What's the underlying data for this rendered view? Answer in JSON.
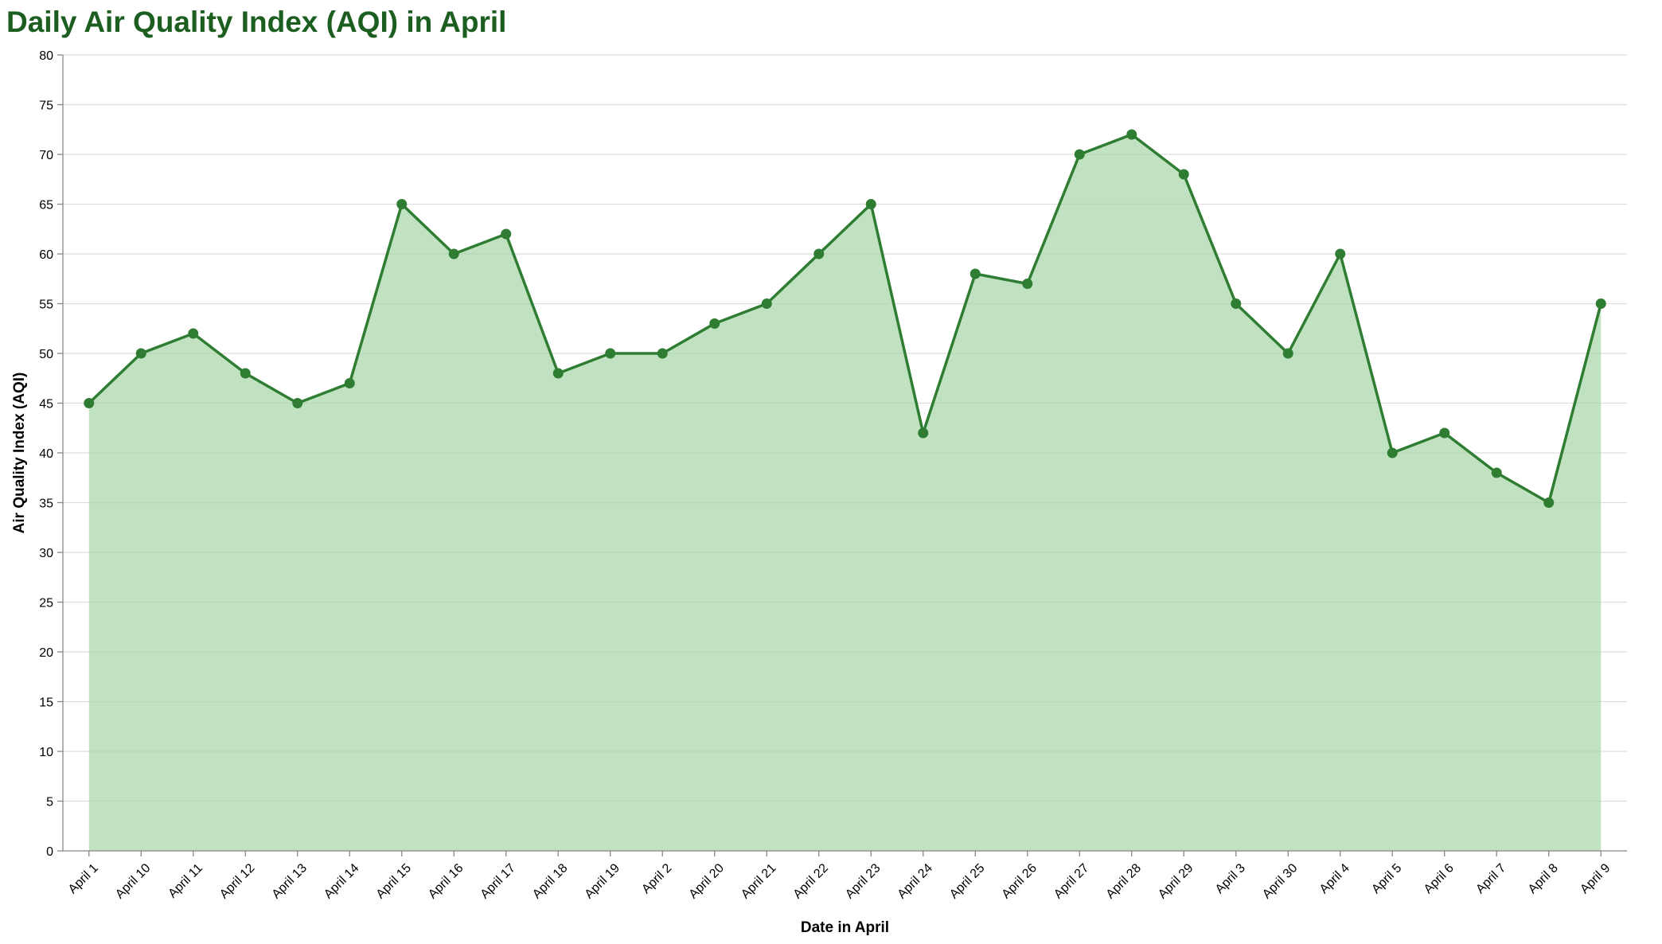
{
  "chart_data": {
    "type": "area",
    "title": "Daily Air Quality Index (AQI) in April",
    "xlabel": "Date in April",
    "ylabel": "Air Quality Index (AQI)",
    "ylim": [
      0,
      80
    ],
    "yticks": [
      0,
      5,
      10,
      15,
      20,
      25,
      30,
      35,
      40,
      45,
      50,
      55,
      60,
      65,
      70,
      75,
      80
    ],
    "grid": true,
    "colors": {
      "line": "#2e7d32",
      "area": "#a5d6a7",
      "title": "#1b5e20"
    },
    "categories": [
      "April 1",
      "April 10",
      "April 11",
      "April 12",
      "April 13",
      "April 14",
      "April 15",
      "April 16",
      "April 17",
      "April 18",
      "April 19",
      "April 2",
      "April 20",
      "April 21",
      "April 22",
      "April 23",
      "April 24",
      "April 25",
      "April 26",
      "April 27",
      "April 28",
      "April 29",
      "April 3",
      "April 30",
      "April 4",
      "April 5",
      "April 6",
      "April 7",
      "April 8",
      "April 9"
    ],
    "values": [
      45,
      50,
      52,
      48,
      45,
      47,
      65,
      60,
      62,
      48,
      50,
      50,
      53,
      55,
      60,
      65,
      42,
      58,
      57,
      70,
      72,
      68,
      55,
      50,
      60,
      40,
      42,
      38,
      35,
      55
    ]
  }
}
